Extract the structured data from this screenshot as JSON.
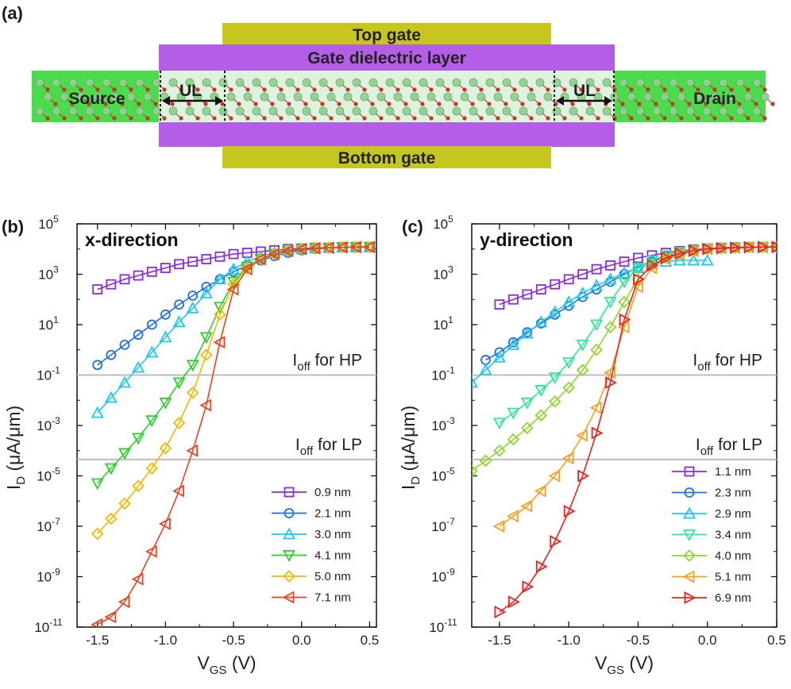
{
  "schematic": {
    "label": "(a)",
    "top_gate": "Top gate",
    "dielectric": "Gate dielectric layer",
    "source": "Source",
    "drain": "Drain",
    "ul_left": "UL",
    "ul_right": "UL",
    "bottom_gate": "Bottom gate",
    "colors": {
      "gate": "#c6c61e",
      "dielectric": "#b45ee8",
      "electrode": "#3bd93b",
      "atom_green": "#8fd28f",
      "atom_red": "#c0392b"
    }
  },
  "chart_data": [
    {
      "type": "line",
      "panel": "(b)",
      "title": "x-direction",
      "xlabel": "V",
      "xlabel_sub": "GS",
      "xlabel_unit": " (V)",
      "ylabel": "I",
      "ylabel_sub": "D",
      "ylabel_unit": " (μA/μm)",
      "xlim": [
        -1.65,
        0.55
      ],
      "ylim_log10": [
        -11,
        5
      ],
      "yscale": "log",
      "x_ticks": [
        "-1.5",
        "-1.0",
        "-0.5",
        "0.0",
        "0.5"
      ],
      "y_ticks": [
        "10-11",
        "10-9",
        "10-7",
        "10-5",
        "10-3",
        "10-1",
        "101",
        "103",
        "105"
      ],
      "hlines": [
        {
          "y_log10": -1.0,
          "label": "I",
          "label_sub": "off",
          "label_rest": " for HP"
        },
        {
          "y_log10": -4.35,
          "label": "I",
          "label_sub": "off",
          "label_rest": " for LP"
        }
      ],
      "legend_position": "bottom-right",
      "series": [
        {
          "name": "0.9 nm",
          "color": "#8a2be2",
          "marker": "square",
          "x": [
            -1.5,
            -1.4,
            -1.3,
            -1.2,
            -1.1,
            -1.0,
            -0.9,
            -0.8,
            -0.7,
            -0.6,
            -0.5,
            -0.4,
            -0.3,
            -0.2,
            -0.1,
            0.0,
            0.1,
            0.2,
            0.3,
            0.4,
            0.5
          ],
          "y_log10": [
            2.4,
            2.6,
            2.8,
            2.95,
            3.1,
            3.25,
            3.4,
            3.5,
            3.6,
            3.7,
            3.8,
            3.85,
            3.9,
            3.95,
            4.0,
            4.02,
            4.05,
            4.05,
            4.07,
            4.07,
            4.08
          ]
        },
        {
          "name": "2.1 nm",
          "color": "#1e6fe8",
          "marker": "circle",
          "x": [
            -1.5,
            -1.4,
            -1.3,
            -1.2,
            -1.1,
            -1.0,
            -0.9,
            -0.8,
            -0.7,
            -0.6,
            -0.5,
            -0.4,
            -0.3,
            -0.2,
            -0.1,
            0.0,
            0.1,
            0.2,
            0.3,
            0.4,
            0.5
          ],
          "y_log10": [
            -0.6,
            -0.2,
            0.2,
            0.6,
            1.0,
            1.4,
            1.8,
            2.15,
            2.5,
            2.8,
            3.1,
            3.35,
            3.55,
            3.72,
            3.85,
            3.95,
            4.0,
            4.05,
            4.07,
            4.08,
            4.08
          ]
        },
        {
          "name": "3.0 nm",
          "color": "#1ec8f0",
          "marker": "triangle-up",
          "x": [
            -1.5,
            -1.4,
            -1.3,
            -1.2,
            -1.1,
            -1.0,
            -0.9,
            -0.8,
            -0.7,
            -0.6,
            -0.5,
            -0.4,
            -0.3,
            -0.2,
            -0.1,
            0.0,
            0.1,
            0.2,
            0.3,
            0.4,
            0.5
          ],
          "y_log10": [
            -2.5,
            -1.9,
            -1.3,
            -0.7,
            -0.1,
            0.5,
            1.1,
            1.65,
            2.25,
            2.8,
            3.2,
            3.5,
            3.7,
            3.85,
            3.95,
            4.0,
            4.03,
            4.05,
            4.07,
            4.08,
            4.08
          ]
        },
        {
          "name": "4.1 nm",
          "color": "#2ad12a",
          "marker": "triangle-down",
          "x": [
            -1.5,
            -1.4,
            -1.3,
            -1.2,
            -1.1,
            -1.0,
            -0.9,
            -0.8,
            -0.7,
            -0.6,
            -0.5,
            -0.4,
            -0.3,
            -0.2,
            -0.1,
            0.0,
            0.1,
            0.2,
            0.3,
            0.4,
            0.5
          ],
          "y_log10": [
            -5.3,
            -4.7,
            -4.1,
            -3.5,
            -2.8,
            -2.1,
            -1.3,
            -0.6,
            0.5,
            1.7,
            2.7,
            3.3,
            3.6,
            3.8,
            3.92,
            4.0,
            4.03,
            4.05,
            4.07,
            4.08,
            4.08
          ]
        },
        {
          "name": "5.0 nm",
          "color": "#f5b800",
          "marker": "diamond",
          "x": [
            -1.5,
            -1.4,
            -1.3,
            -1.2,
            -1.1,
            -1.0,
            -0.9,
            -0.8,
            -0.7,
            -0.6,
            -0.5,
            -0.4,
            -0.3,
            -0.2,
            -0.1,
            0.0,
            0.1,
            0.2,
            0.3,
            0.4,
            0.5
          ],
          "y_log10": [
            -7.3,
            -6.7,
            -6.1,
            -5.4,
            -4.7,
            -3.9,
            -2.9,
            -1.7,
            -0.2,
            1.4,
            2.6,
            3.25,
            3.6,
            3.8,
            3.92,
            4.0,
            4.03,
            4.05,
            4.07,
            4.08,
            4.08
          ]
        },
        {
          "name": "7.1 nm",
          "color": "#f04020",
          "marker": "triangle-left",
          "x": [
            -1.5,
            -1.4,
            -1.3,
            -1.2,
            -1.1,
            -1.0,
            -0.9,
            -0.8,
            -0.7,
            -0.6,
            -0.5,
            -0.4,
            -0.3,
            -0.2,
            -0.1,
            0.0,
            0.1,
            0.2,
            0.3,
            0.4,
            0.5
          ],
          "y_log10": [
            -10.9,
            -10.6,
            -10.0,
            -9.1,
            -8.0,
            -6.9,
            -5.6,
            -4.0,
            -2.2,
            0.3,
            2.4,
            3.2,
            3.6,
            3.8,
            3.92,
            4.0,
            4.03,
            4.05,
            4.07,
            4.08,
            4.08
          ]
        }
      ]
    },
    {
      "type": "line",
      "panel": "(c)",
      "title": "y-direction",
      "xlabel": "V",
      "xlabel_sub": "GS",
      "xlabel_unit": " (V)",
      "ylabel": "I",
      "ylabel_sub": "D",
      "ylabel_unit": " (μA/μm)",
      "xlim": [
        -1.7,
        0.5
      ],
      "ylim_log10": [
        -11,
        5
      ],
      "yscale": "log",
      "x_ticks": [
        "-1.5",
        "-1.0",
        "-0.5",
        "0.0",
        "0.5"
      ],
      "y_ticks": [
        "10-11",
        "10-9",
        "10-7",
        "10-5",
        "10-3",
        "10-1",
        "101",
        "103",
        "105"
      ],
      "hlines": [
        {
          "y_log10": -1.0,
          "label": "I",
          "label_sub": "off",
          "label_rest": " for HP"
        },
        {
          "y_log10": -4.35,
          "label": "I",
          "label_sub": "off",
          "label_rest": " for LP"
        }
      ],
      "legend_position": "bottom-right",
      "series": [
        {
          "name": "1.1 nm",
          "color": "#8a2be2",
          "marker": "square",
          "x": [
            -1.5,
            -1.4,
            -1.3,
            -1.2,
            -1.1,
            -1.0,
            -0.9,
            -0.8,
            -0.7,
            -0.6,
            -0.5,
            -0.4,
            -0.3,
            -0.2,
            -0.1,
            0.0,
            0.1,
            0.2,
            0.3,
            0.4,
            0.5
          ],
          "y_log10": [
            1.8,
            2.0,
            2.2,
            2.4,
            2.6,
            2.8,
            3.0,
            3.2,
            3.35,
            3.5,
            3.65,
            3.75,
            3.85,
            3.92,
            3.98,
            4.02,
            4.05,
            4.07,
            4.08,
            4.08,
            4.08
          ]
        },
        {
          "name": "2.3 nm",
          "color": "#1e6fe8",
          "marker": "circle",
          "x": [
            -1.6,
            -1.5,
            -1.4,
            -1.3,
            -1.2,
            -1.1,
            -1.0,
            -0.9,
            -0.8,
            -0.7,
            -0.6,
            -0.5,
            -0.4,
            -0.3,
            -0.2,
            -0.1,
            0.0,
            0.1,
            0.2,
            0.3,
            0.4,
            0.5
          ],
          "y_log10": [
            -0.4,
            -0.1,
            0.3,
            0.7,
            1.05,
            1.4,
            1.75,
            2.1,
            2.4,
            2.7,
            3.0,
            3.3,
            3.5,
            3.7,
            3.85,
            3.95,
            4.0,
            4.03,
            4.05,
            4.07,
            4.08,
            4.08
          ]
        },
        {
          "name": "2.9 nm",
          "color": "#1ec8f0",
          "marker": "triangle-up",
          "x": [
            -1.7,
            -1.6,
            -1.5,
            -1.4,
            -1.3,
            -1.2,
            -1.1,
            -1.0,
            -0.9,
            -0.8,
            -0.7,
            -0.6,
            -0.5,
            -0.4,
            -0.3,
            -0.2,
            -0.1,
            0.0
          ],
          "y_log10": [
            -1.3,
            -0.8,
            -0.3,
            0.2,
            0.65,
            1.1,
            1.5,
            1.9,
            2.25,
            2.55,
            2.8,
            3.05,
            3.25,
            3.4,
            3.5,
            3.55,
            3.55,
            3.55
          ]
        },
        {
          "name": "3.4 nm",
          "color": "#2ee89a",
          "marker": "triangle-down",
          "x": [
            -1.5,
            -1.4,
            -1.3,
            -1.2,
            -1.1,
            -1.0,
            -0.9,
            -0.8,
            -0.7,
            -0.6,
            -0.5,
            -0.4,
            -0.3,
            -0.2,
            -0.1,
            0.0,
            0.1,
            0.2,
            0.3,
            0.4,
            0.5
          ],
          "y_log10": [
            -2.9,
            -2.5,
            -2.1,
            -1.6,
            -1.1,
            -0.5,
            0.2,
            1.0,
            1.9,
            2.7,
            3.25,
            3.55,
            3.75,
            3.88,
            3.95,
            4.0,
            4.03,
            4.05,
            4.07,
            4.08,
            4.08
          ]
        },
        {
          "name": "4.0 nm",
          "color": "#8ed82a",
          "marker": "diamond",
          "x": [
            -1.7,
            -1.6,
            -1.5,
            -1.4,
            -1.3,
            -1.2,
            -1.1,
            -1.0,
            -0.9,
            -0.8,
            -0.7,
            -0.6,
            -0.5,
            -0.4,
            -0.3,
            -0.2,
            -0.1,
            0.0,
            0.1,
            0.2,
            0.3,
            0.4,
            0.5
          ],
          "y_log10": [
            -4.8,
            -4.4,
            -4.0,
            -3.55,
            -3.1,
            -2.6,
            -2.05,
            -1.5,
            -0.8,
            0.0,
            0.9,
            1.9,
            2.8,
            3.35,
            3.65,
            3.82,
            3.93,
            4.0,
            4.03,
            4.05,
            4.07,
            4.08,
            4.08
          ]
        },
        {
          "name": "5.1 nm",
          "color": "#f5a020",
          "marker": "triangle-left",
          "x": [
            -1.5,
            -1.4,
            -1.3,
            -1.2,
            -1.1,
            -1.0,
            -0.9,
            -0.8,
            -0.7,
            -0.6,
            -0.5,
            -0.4,
            -0.3,
            -0.2,
            -0.1,
            0.0,
            0.1,
            0.2,
            0.3,
            0.4,
            0.5
          ],
          "y_log10": [
            -7.0,
            -6.6,
            -6.2,
            -5.6,
            -5.0,
            -4.3,
            -3.4,
            -2.3,
            -0.9,
            0.9,
            2.5,
            3.25,
            3.6,
            3.8,
            3.92,
            4.0,
            4.03,
            4.05,
            4.07,
            4.08,
            4.08
          ]
        },
        {
          "name": "6.9 nm",
          "color": "#f02020",
          "marker": "triangle-right",
          "x": [
            -1.5,
            -1.4,
            -1.3,
            -1.2,
            -1.1,
            -1.0,
            -0.9,
            -0.8,
            -0.7,
            -0.6,
            -0.5,
            -0.4,
            -0.3,
            -0.2,
            -0.1,
            0.0,
            0.1,
            0.2,
            0.3,
            0.4,
            0.5
          ],
          "y_log10": [
            -10.4,
            -10.0,
            -9.4,
            -8.6,
            -7.6,
            -6.4,
            -5.0,
            -3.3,
            -1.3,
            1.2,
            2.8,
            3.35,
            3.65,
            3.82,
            3.93,
            4.0,
            4.03,
            4.05,
            4.07,
            4.08,
            4.08
          ]
        }
      ]
    }
  ]
}
